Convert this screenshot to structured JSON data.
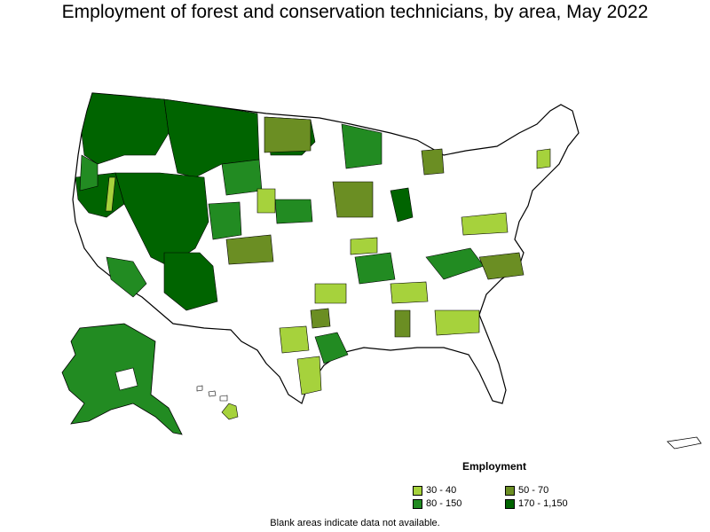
{
  "title": "Employment of forest and conservation technicians, by area, May 2022",
  "legend": {
    "title": "Employment",
    "items": [
      {
        "label": "30 - 40",
        "color": "#a6d23c"
      },
      {
        "label": "50 - 70",
        "color": "#6b8e23"
      },
      {
        "label": "80 - 150",
        "color": "#228b22"
      },
      {
        "label": "170 - 1,150",
        "color": "#006400"
      }
    ]
  },
  "note": "Blank areas indicate data not available.",
  "colors": {
    "outline": "#000000",
    "no_data": "#ffffff"
  }
}
